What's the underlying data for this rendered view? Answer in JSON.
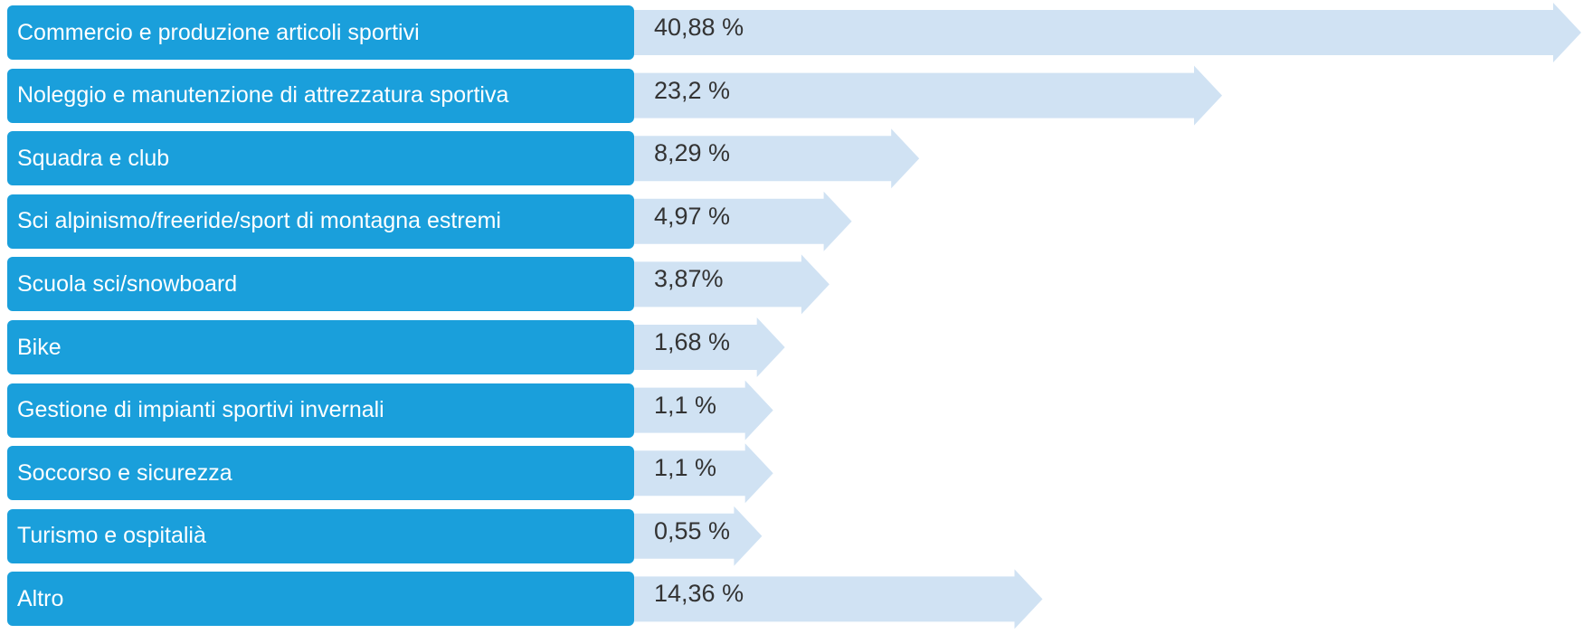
{
  "colors": {
    "label_box": "#1a9fdb",
    "arrow": "#d0e2f3",
    "value_text": "#333333"
  },
  "chart_data": {
    "type": "bar",
    "orientation": "horizontal",
    "categories": [
      "Commercio e produzione articoli sportivi",
      "Noleggio e manutenzione di attrezzatura sportiva",
      "Squadra e club",
      "Sci alpinismo/freeride/sport di montagna estremi",
      "Scuola sci/snowboard",
      "Bike",
      "Gestione di impianti sportivi invernali",
      "Soccorso e sicurezza",
      "Turismo e ospitalià",
      "Altro"
    ],
    "values": [
      40.88,
      23.2,
      8.29,
      4.97,
      3.87,
      1.68,
      1.1,
      1.1,
      0.55,
      14.36
    ],
    "value_labels": [
      "40,88 %",
      "23,2 %",
      "8,29 %",
      "4,97 %",
      "3,87%",
      "1,68 %",
      "1,1 %",
      "1,1 %",
      "0,55 %",
      "14,36 %"
    ],
    "unit": "%",
    "xlim": [
      0,
      40.88
    ],
    "grid": false,
    "legend": "none"
  }
}
